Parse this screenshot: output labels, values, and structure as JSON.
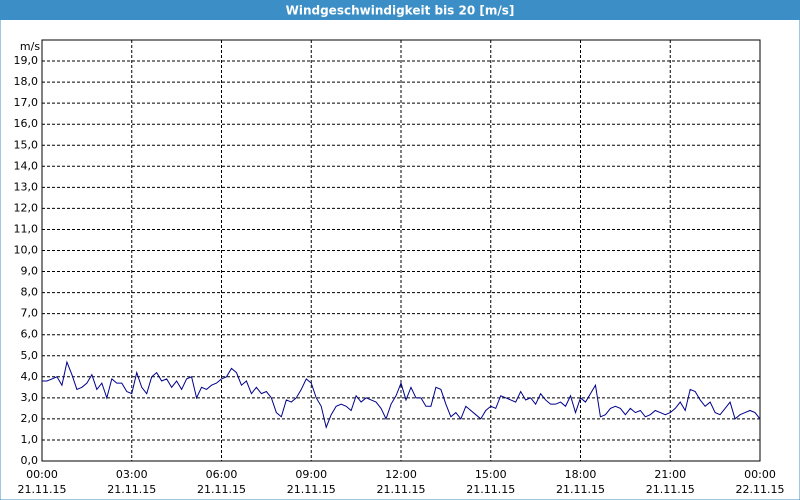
{
  "chart_data": {
    "type": "line",
    "title": "Windgeschwindigkeit bis 20 [m/s]",
    "y_unit": "m/s",
    "x": [
      0,
      10,
      20,
      30,
      40,
      50,
      60,
      70,
      80,
      90,
      100,
      110,
      120,
      130,
      140,
      150,
      160,
      170,
      180,
      190,
      200,
      210,
      220,
      230,
      240,
      250,
      260,
      270,
      280,
      290,
      300,
      310,
      320,
      330,
      340,
      350,
      360,
      370,
      380,
      390,
      400,
      410,
      420,
      430,
      440,
      450,
      460,
      470,
      480,
      490,
      500,
      510,
      520,
      530,
      540,
      550,
      560,
      570,
      580,
      590,
      600,
      610,
      620,
      630,
      640,
      650,
      660,
      670,
      680,
      690,
      700,
      710,
      720,
      730,
      740,
      750,
      760,
      770,
      780,
      790,
      800,
      810,
      820,
      830,
      840,
      850,
      860,
      870,
      880,
      890,
      900,
      910,
      920,
      930,
      940,
      950,
      960,
      970,
      980,
      990,
      1000,
      1010,
      1020,
      1030,
      1040,
      1050,
      1060,
      1070,
      1080,
      1090,
      1100,
      1110,
      1120,
      1130,
      1140,
      1150,
      1160,
      1170,
      1180,
      1190,
      1200,
      1210,
      1220,
      1230,
      1240,
      1250,
      1260,
      1270,
      1280,
      1290,
      1300,
      1310,
      1320,
      1330,
      1340,
      1350,
      1360,
      1370,
      1380,
      1390,
      1400,
      1410,
      1420,
      1430,
      1440
    ],
    "series": [
      {
        "color": "#00008b",
        "values": [
          3.8,
          3.8,
          3.9,
          4.0,
          3.6,
          4.7,
          4.1,
          3.4,
          3.5,
          3.7,
          4.1,
          3.4,
          3.7,
          3.0,
          3.9,
          3.7,
          3.7,
          3.3,
          3.2,
          4.2,
          3.5,
          3.2,
          4.0,
          4.2,
          3.8,
          3.9,
          3.5,
          3.8,
          3.4,
          3.9,
          4.0,
          3.0,
          3.5,
          3.4,
          3.6,
          3.7,
          3.9,
          4.0,
          4.4,
          4.2,
          3.6,
          3.8,
          3.2,
          3.5,
          3.2,
          3.3,
          3.0,
          2.3,
          2.1,
          2.9,
          2.8,
          3.0,
          3.4,
          3.9,
          3.7,
          3.0,
          2.6,
          1.6,
          2.2,
          2.6,
          2.7,
          2.6,
          2.4,
          3.1,
          2.8,
          3.0,
          2.9,
          2.8,
          2.5,
          2.0,
          2.7,
          3.1,
          3.7,
          2.9,
          3.5,
          3.0,
          3.0,
          2.6,
          2.6,
          3.5,
          3.4,
          2.7,
          2.1,
          2.3,
          2.0,
          2.6,
          2.4,
          2.2,
          2.0,
          2.4,
          2.6,
          2.5,
          3.1,
          3.0,
          2.9,
          2.8,
          3.3,
          2.9,
          3.0,
          2.7,
          3.2,
          2.9,
          2.7,
          2.7,
          2.8,
          2.6,
          3.1,
          2.3,
          3.0,
          2.8,
          3.2,
          3.6,
          2.1,
          2.2,
          2.5,
          2.6,
          2.5,
          2.2,
          2.5,
          2.3,
          2.4,
          2.1,
          2.2,
          2.4,
          2.3,
          2.2,
          2.3,
          2.5,
          2.8,
          2.4,
          3.4,
          3.3,
          2.9,
          2.6,
          2.8,
          2.3,
          2.2,
          2.5,
          2.8,
          2.0,
          2.2,
          2.3,
          2.4,
          2.3,
          2.0
        ]
      }
    ],
    "xlim": [
      0,
      1440
    ],
    "xticks": [
      {
        "value": 0,
        "label": "00:00",
        "date": "21.11.15"
      },
      {
        "value": 180,
        "label": "03:00",
        "date": "21.11.15"
      },
      {
        "value": 360,
        "label": "06:00",
        "date": "21.11.15"
      },
      {
        "value": 540,
        "label": "09:00",
        "date": "21.11.15"
      },
      {
        "value": 720,
        "label": "12:00",
        "date": "21.11.15"
      },
      {
        "value": 900,
        "label": "15:00",
        "date": "21.11.15"
      },
      {
        "value": 1080,
        "label": "18:00",
        "date": "21.11.15"
      },
      {
        "value": 1260,
        "label": "21:00",
        "date": "21.11.15"
      },
      {
        "value": 1440,
        "label": "00:00",
        "date": "22.11.15"
      }
    ],
    "ylim": [
      0,
      20
    ],
    "yticks": [
      {
        "value": 0,
        "label": "0,0"
      },
      {
        "value": 1,
        "label": "1,0"
      },
      {
        "value": 2,
        "label": "2,0"
      },
      {
        "value": 3,
        "label": "3,0"
      },
      {
        "value": 4,
        "label": "4,0"
      },
      {
        "value": 5,
        "label": "5,0"
      },
      {
        "value": 6,
        "label": "6,0"
      },
      {
        "value": 7,
        "label": "7,0"
      },
      {
        "value": 8,
        "label": "8,0"
      },
      {
        "value": 9,
        "label": "9,0"
      },
      {
        "value": 10,
        "label": "10,0"
      },
      {
        "value": 11,
        "label": "11,0"
      },
      {
        "value": 12,
        "label": "12,0"
      },
      {
        "value": 13,
        "label": "13,0"
      },
      {
        "value": 14,
        "label": "14,0"
      },
      {
        "value": 15,
        "label": "15,0"
      },
      {
        "value": 16,
        "label": "16,0"
      },
      {
        "value": 17,
        "label": "17,0"
      },
      {
        "value": 18,
        "label": "18,0"
      },
      {
        "value": 19,
        "label": "19,0"
      }
    ],
    "grid": true
  }
}
